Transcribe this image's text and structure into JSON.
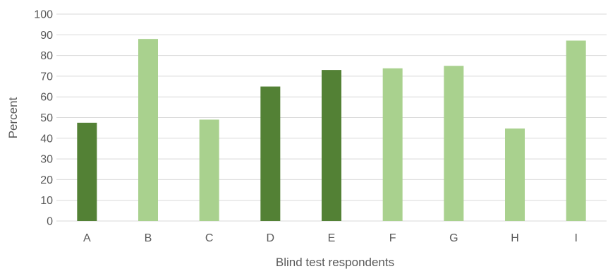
{
  "chart_data": {
    "type": "bar",
    "categories": [
      "A",
      "B",
      "C",
      "D",
      "E",
      "F",
      "G",
      "H",
      "I"
    ],
    "values": [
      47.5,
      88,
      49,
      65,
      73,
      73.8,
      75,
      44.7,
      87.2
    ],
    "bar_color_group": [
      "dark",
      "light",
      "light",
      "dark",
      "dark",
      "light",
      "light",
      "light",
      "light"
    ],
    "colors": {
      "dark": "#538135",
      "light": "#a9d18e",
      "grid": "#d9d9d9",
      "text": "#595959"
    },
    "xlabel": "Blind test respondents",
    "ylabel": "Percent",
    "ylim": [
      0,
      100
    ],
    "yticks": [
      0,
      10,
      20,
      30,
      40,
      50,
      60,
      70,
      80,
      90,
      100
    ],
    "grid": true,
    "legend": "none"
  }
}
